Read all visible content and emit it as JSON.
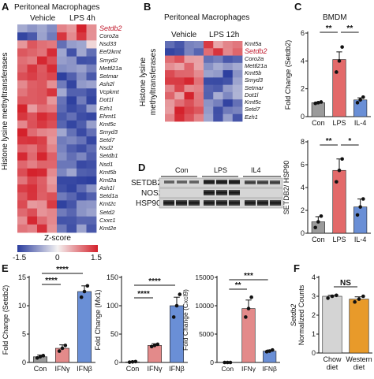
{
  "panelA": {
    "label": "A",
    "title": "Peritoneal Macrophages",
    "groups": [
      "Vehicle",
      "LPS 4h"
    ],
    "ylabel": "Histone lysine methyltransferases",
    "genes": [
      "Setdb2",
      "Coro2a",
      "Nsd33",
      "Eef2kmt",
      "Smyd2",
      "Mettl21a",
      "Setmar",
      "Ash2l",
      "Vcpkmt",
      "Dot1l",
      "Ezh1",
      "Ehmt1",
      "Kmt5c",
      "Smyd3",
      "Setd7",
      "Nsd2",
      "Setdb1",
      "Nsd1",
      "Kmt5b",
      "Kmt2a",
      "Ash1l",
      "Setd1a",
      "Kmt2c",
      "Setd2",
      "Cxxc1",
      "Kmt2e"
    ],
    "highlight": "Setdb2",
    "zscore_label": "Z-score",
    "scale_ticks": [
      "-1.5",
      "0",
      "1.5"
    ]
  },
  "panelB": {
    "label": "B",
    "title": "Peritoneal Macrophages",
    "groups": [
      "Vehicle",
      "LPS 12h"
    ],
    "ylabel_line1": "Histone lysine",
    "ylabel_line2": "methyltransferases",
    "genes": [
      "Kmt5a",
      "Setdb2",
      "Coro2a",
      "Mettl21a",
      "Kmt5b",
      "Smyd3",
      "Setmar",
      "Dot1l",
      "Kmt5c",
      "Setd7",
      "Ezh1"
    ],
    "highlight": "Setdb2"
  },
  "panelC": {
    "label": "C",
    "title": "BMDM",
    "colors": {
      "con": "#9b9b9b",
      "lps": "#e36a6a",
      "il4": "#6a8fd6"
    },
    "chart_data": [
      {
        "type": "bar",
        "ylabel": "Fold Change (Setdb2)",
        "categories": [
          "Con",
          "LPS",
          "IL-4"
        ],
        "values": [
          1.0,
          4.1,
          1.2
        ],
        "errors": [
          0.05,
          0.55,
          0.15
        ],
        "points": [
          [
            0.95,
            1.0,
            1.05
          ],
          [
            3.2,
            4.0,
            5.0
          ],
          [
            1.0,
            1.2,
            1.4
          ]
        ],
        "ylim": [
          0,
          6
        ],
        "yticks": [
          "0",
          "2",
          "4",
          "6"
        ],
        "significance": [
          {
            "from": 0,
            "to": 1,
            "label": "**"
          },
          {
            "from": 1,
            "to": 2,
            "label": "**"
          }
        ]
      },
      {
        "type": "bar",
        "ylabel": "SETDB2/ HSP90",
        "categories": [
          "Con",
          "LPS",
          "IL-4"
        ],
        "values": [
          1.0,
          5.5,
          2.3
        ],
        "errors": [
          0.45,
          1.0,
          0.7
        ],
        "points": [
          [
            0.5,
            1.0,
            1.5
          ],
          [
            4.5,
            5.5,
            6.5
          ],
          [
            1.6,
            2.3,
            3.0
          ]
        ],
        "ylim": [
          0,
          8
        ],
        "yticks": [
          "0",
          "2",
          "4",
          "6",
          "8"
        ],
        "significance": [
          {
            "from": 0,
            "to": 1,
            "label": "**"
          },
          {
            "from": 1,
            "to": 2,
            "label": "*"
          }
        ]
      }
    ]
  },
  "panelD": {
    "label": "D",
    "groups": [
      "Con",
      "LPS",
      "IL4"
    ],
    "rows": [
      "SETDB2",
      "NOS2",
      "HSP90"
    ]
  },
  "panelE": {
    "label": "E",
    "colors": {
      "con": "#9b9b9b",
      "ifng": "#e38a8a",
      "ifnb": "#6a8fd6"
    },
    "chart_data": [
      {
        "type": "bar",
        "ylabel": "Fold Change (Setdb2)",
        "categories": [
          "Con",
          "IFNγ",
          "IFNβ"
        ],
        "values": [
          1.0,
          2.5,
          12.5
        ],
        "errors": [
          0.3,
          0.6,
          1.0
        ],
        "points": [
          [
            0.8,
            1.0,
            1.2
          ],
          [
            2.0,
            2.5,
            3.0
          ],
          [
            11.5,
            12.5,
            13.5
          ]
        ],
        "ylim": [
          0,
          15
        ],
        "yticks": [
          "0",
          "5",
          "10",
          "15"
        ],
        "significance": [
          {
            "from": 0,
            "to": 1,
            "label": "****"
          },
          {
            "from": 0,
            "to": 2,
            "label": "****"
          }
        ]
      },
      {
        "type": "bar",
        "ylabel": "Fold Change (Mx1)",
        "categories": [
          "Con",
          "IFNγ",
          "IFNβ"
        ],
        "values": [
          1.0,
          30.0,
          100.0
        ],
        "errors": [
          0.5,
          3.0,
          15.0
        ],
        "points": [
          [
            0.5,
            1.0,
            1.5
          ],
          [
            28.0,
            30.0,
            32.0
          ],
          [
            80.0,
            100.0,
            120.0
          ]
        ],
        "ylim": [
          0,
          150
        ],
        "yticks": [
          "0",
          "50",
          "100",
          "150"
        ],
        "significance": [
          {
            "from": 0,
            "to": 1,
            "label": "****"
          },
          {
            "from": 0,
            "to": 2,
            "label": "****"
          }
        ]
      },
      {
        "type": "bar",
        "ylabel": "Fold Change (Cxcl9)",
        "categories": [
          "Con",
          "IFNγ",
          "IFNβ"
        ],
        "values": [
          1.0,
          9500.0,
          2000.0
        ],
        "errors": [
          1.0,
          1500.0,
          200.0
        ],
        "points": [
          [
            0.5,
            1.0,
            1.5
          ],
          [
            8000.0,
            9500.0,
            11500.0
          ],
          [
            1900.0,
            2000.0,
            2200.0
          ]
        ],
        "ylim": [
          0,
          15000
        ],
        "yticks": [
          "0",
          "5000",
          "10000",
          "15000"
        ],
        "significance": [
          {
            "from": 0,
            "to": 1,
            "label": "**"
          },
          {
            "from": 0,
            "to": 2,
            "label": "***"
          }
        ]
      }
    ]
  },
  "panelF": {
    "label": "F",
    "colors": {
      "chow": "#d4d4d4",
      "western": "#e89a2a"
    },
    "chart_data": {
      "type": "bar",
      "ylabel_line1": "Setdb2",
      "ylabel_line2": "Normalized Counts",
      "categories": [
        "Chow diet",
        "Western diet"
      ],
      "category_lines": [
        [
          "Chow",
          "diet"
        ],
        [
          "Western",
          "diet"
        ]
      ],
      "values": [
        3.0,
        2.85
      ],
      "errors": [
        0.05,
        0.12
      ],
      "points": [
        [
          2.9,
          3.0,
          3.05
        ],
        [
          2.7,
          2.85,
          3.0
        ]
      ],
      "ylim": [
        0,
        4
      ],
      "yticks": [
        "0",
        "1",
        "2",
        "3",
        "4"
      ],
      "significance": [
        {
          "from": 0,
          "to": 1,
          "label": "NS"
        }
      ]
    }
  }
}
